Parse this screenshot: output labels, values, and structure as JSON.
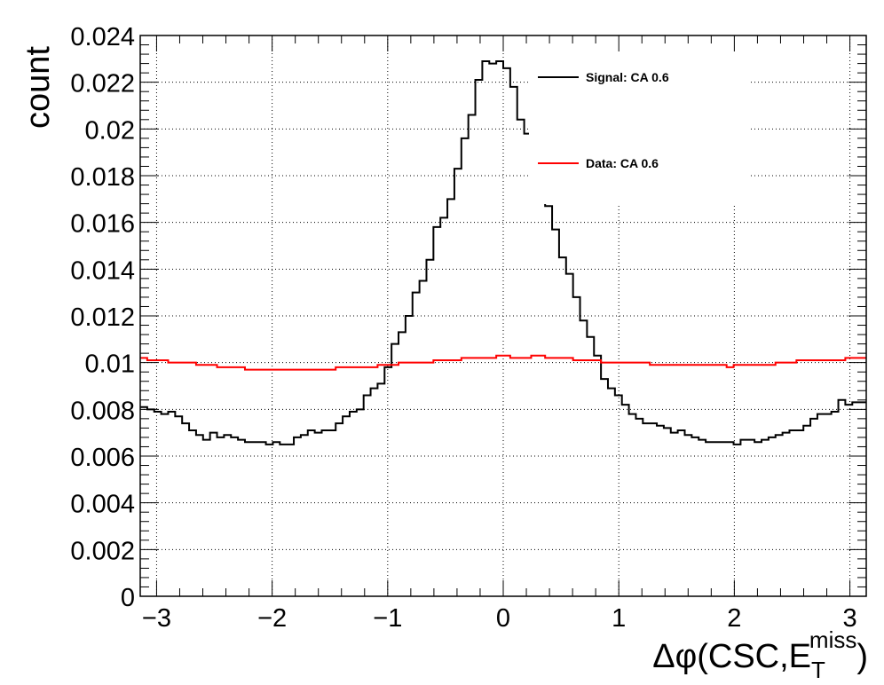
{
  "chart_data": {
    "type": "line",
    "title": "",
    "xlabel": "Δφ(CSC,E_T^miss)",
    "xlabel_parts": {
      "main": "Δφ(CSC,E",
      "sub": "T",
      "sup": "miss",
      "close": ")"
    },
    "ylabel": "count",
    "xlim": [
      -3.1416,
      3.1416
    ],
    "ylim": [
      0,
      0.024
    ],
    "grid": true,
    "legend_position": "top-right",
    "x_tick_labels": [
      "−3",
      "−2",
      "−1",
      "0",
      "1",
      "2",
      "3"
    ],
    "x_tick_values": [
      -3,
      -2,
      -1,
      0,
      1,
      2,
      3
    ],
    "y_tick_labels": [
      "0",
      "0.002",
      "0.004",
      "0.006",
      "0.008",
      "0.01",
      "0.012",
      "0.014",
      "0.016",
      "0.018",
      "0.02",
      "0.022",
      "0.024"
    ],
    "y_tick_values": [
      0,
      0.002,
      0.004,
      0.006,
      0.008,
      0.01,
      0.012,
      0.014,
      0.016,
      0.018,
      0.02,
      0.022,
      0.024
    ],
    "series": [
      {
        "name": "Signal: CA 0.6",
        "color": "#000000",
        "values": [
          0.0081,
          0.008,
          0.0079,
          0.0078,
          0.0079,
          0.0077,
          0.0074,
          0.0071,
          0.0069,
          0.0067,
          0.007,
          0.0068,
          0.0069,
          0.0068,
          0.0067,
          0.0066,
          0.0066,
          0.0066,
          0.0065,
          0.0066,
          0.0065,
          0.0065,
          0.0068,
          0.0069,
          0.0071,
          0.007,
          0.0071,
          0.0071,
          0.0074,
          0.0077,
          0.0079,
          0.008,
          0.0086,
          0.0089,
          0.0091,
          0.0098,
          0.0108,
          0.0113,
          0.012,
          0.013,
          0.0135,
          0.0144,
          0.0158,
          0.0162,
          0.017,
          0.0183,
          0.0196,
          0.0206,
          0.0221,
          0.0229,
          0.0228,
          0.0229,
          0.0226,
          0.0218,
          0.0204,
          0.0198,
          0.0185,
          0.018,
          0.0167,
          0.0157,
          0.0145,
          0.0138,
          0.0128,
          0.0118,
          0.0111,
          0.0103,
          0.0093,
          0.0089,
          0.0086,
          0.0082,
          0.0078,
          0.0076,
          0.0074,
          0.0074,
          0.0073,
          0.0072,
          0.007,
          0.0071,
          0.0069,
          0.0068,
          0.0067,
          0.0066,
          0.0066,
          0.0066,
          0.0066,
          0.0065,
          0.0067,
          0.0067,
          0.0066,
          0.0067,
          0.0068,
          0.0069,
          0.007,
          0.0071,
          0.0071,
          0.0073,
          0.0076,
          0.0078,
          0.0078,
          0.0079,
          0.0084,
          0.0082,
          0.0083,
          0.0083
        ]
      },
      {
        "name": "Data: CA 0.6",
        "color": "#ff0000",
        "values": [
          0.0102,
          0.0101,
          0.0101,
          0.0101,
          0.01,
          0.01,
          0.01,
          0.01,
          0.0099,
          0.0099,
          0.0099,
          0.0098,
          0.0098,
          0.0098,
          0.0098,
          0.0097,
          0.0097,
          0.0097,
          0.0097,
          0.0097,
          0.0097,
          0.0097,
          0.0097,
          0.0097,
          0.0097,
          0.0097,
          0.0097,
          0.0097,
          0.0098,
          0.0098,
          0.0098,
          0.0098,
          0.0098,
          0.0098,
          0.0099,
          0.0099,
          0.0099,
          0.01,
          0.01,
          0.01,
          0.01,
          0.01,
          0.0101,
          0.0101,
          0.0101,
          0.0101,
          0.0102,
          0.0102,
          0.0102,
          0.0102,
          0.0102,
          0.0103,
          0.0103,
          0.0102,
          0.0102,
          0.0102,
          0.0103,
          0.0103,
          0.0102,
          0.0102,
          0.0102,
          0.0102,
          0.0101,
          0.0101,
          0.0101,
          0.0101,
          0.01,
          0.01,
          0.01,
          0.01,
          0.01,
          0.01,
          0.01,
          0.0099,
          0.0099,
          0.0099,
          0.0099,
          0.0099,
          0.0099,
          0.0099,
          0.0099,
          0.0099,
          0.0099,
          0.0099,
          0.0098,
          0.0099,
          0.0099,
          0.0099,
          0.0099,
          0.0099,
          0.0099,
          0.01,
          0.01,
          0.01,
          0.0101,
          0.0101,
          0.0101,
          0.0101,
          0.0101,
          0.0101,
          0.0101,
          0.0102,
          0.0102,
          0.0102
        ]
      }
    ]
  }
}
